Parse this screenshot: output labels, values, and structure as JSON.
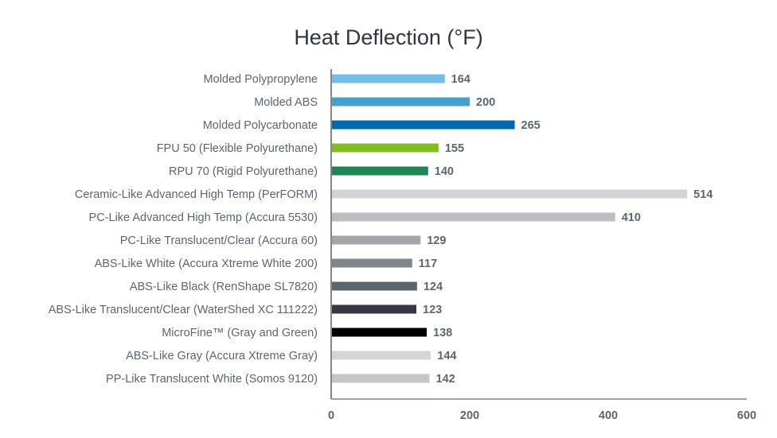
{
  "chart_data": {
    "type": "bar",
    "orientation": "horizontal",
    "title": "Heat Deflection (°F)",
    "xlabel": "",
    "ylabel": "",
    "xlim": [
      0,
      600
    ],
    "xticks": [
      0,
      200,
      400,
      600
    ],
    "grid": false,
    "categories": [
      "Molded Polypropylene",
      "Molded ABS",
      "Molded Polycarbonate",
      "FPU 50 (Flexible Polyurethane)",
      "RPU 70 (Rigid Polyurethane)",
      "Ceramic-Like Advanced High Temp (PerFORM)",
      "PC-Like Advanced High Temp (Accura 5530)",
      "PC-Like Translucent/Clear (Accura 60)",
      "ABS-Like White (Accura Xtreme White 200)",
      "ABS-Like Black (RenShape SL7820)",
      "ABS-Like Translucent/Clear (WaterShed XC 111222)",
      "MicroFine™ (Gray and Green)",
      "ABS-Like Gray (Accura Xtreme Gray)",
      "PP-Like Translucent White (Somos 9120)"
    ],
    "values": [
      164,
      200,
      265,
      155,
      140,
      514,
      410,
      129,
      117,
      124,
      123,
      138,
      144,
      142
    ],
    "colors": [
      "#74BEE6",
      "#45A0CC",
      "#0068AC",
      "#84BC26",
      "#1E8555",
      "#D1D3D4",
      "#BCBEC0",
      "#A2A6A7",
      "#7F878B",
      "#5B666C",
      "#353842",
      "#000000",
      "#D4D6D6",
      "#C4C7C8"
    ]
  }
}
